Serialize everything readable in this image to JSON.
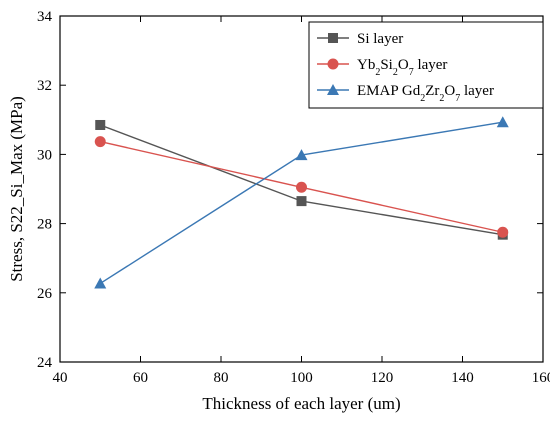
{
  "chart_data": {
    "type": "line",
    "xlabel": "Thickness of each layer (um)",
    "ylabel": "Stress, S22_Si_Max (MPa)",
    "xlim": [
      40,
      160
    ],
    "ylim": [
      24,
      34
    ],
    "xticks": [
      40,
      60,
      80,
      100,
      120,
      140,
      160
    ],
    "yticks": [
      24,
      26,
      28,
      30,
      32,
      34
    ],
    "grid": false,
    "legend_position": "top-right",
    "x": [
      50,
      100,
      150
    ],
    "series": [
      {
        "name": "Si layer",
        "label_parts": [
          [
            "Si layer",
            "n"
          ]
        ],
        "values": [
          30.85,
          28.65,
          27.68
        ],
        "color": "#555555",
        "marker": "square"
      },
      {
        "name": "Yb2Si2O7 layer",
        "label_parts": [
          [
            "Yb",
            "n"
          ],
          [
            "2",
            "sub"
          ],
          [
            "Si",
            "n"
          ],
          [
            "2",
            "sub"
          ],
          [
            "O",
            "n"
          ],
          [
            "7",
            "sub"
          ],
          [
            " layer",
            "n"
          ]
        ],
        "values": [
          30.37,
          29.05,
          27.75
        ],
        "color": "#d9534f",
        "marker": "circle"
      },
      {
        "name": "EMAP Gd2Zr2O7 layer",
        "label_parts": [
          [
            "EMAP Gd",
            "n"
          ],
          [
            "2",
            "sub"
          ],
          [
            "Zr",
            "n"
          ],
          [
            "2",
            "sub"
          ],
          [
            "O",
            "n"
          ],
          [
            "7",
            "sub"
          ],
          [
            " layer",
            "n"
          ]
        ],
        "values": [
          26.27,
          29.98,
          30.93
        ],
        "color": "#3b78b4",
        "marker": "triangle"
      }
    ]
  }
}
